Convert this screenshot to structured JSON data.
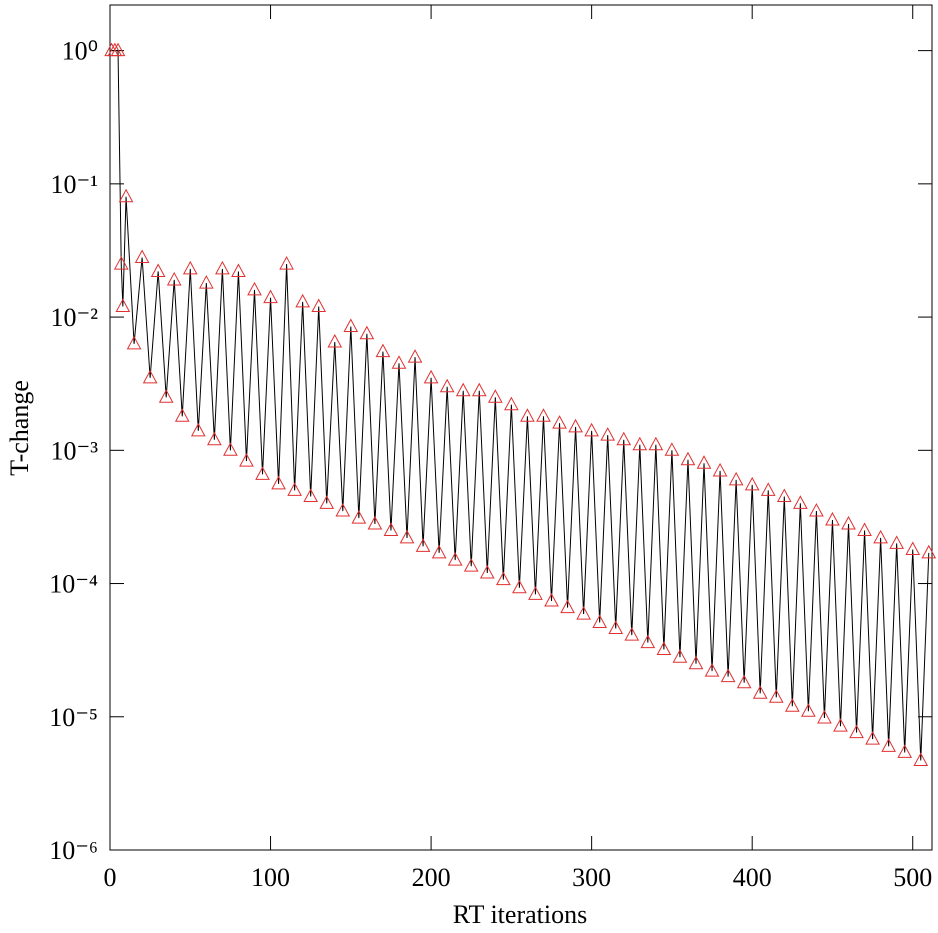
{
  "chart_data": {
    "type": "line",
    "xlabel": "RT iterations",
    "ylabel": "T-change",
    "log_y": true,
    "xlim": [
      0,
      512
    ],
    "ylim": [
      1e-06,
      2.2
    ],
    "xticks": [
      0,
      100,
      200,
      300,
      400,
      500
    ],
    "yticks": [
      {
        "value": 1e-06,
        "label": "10⁻⁶"
      },
      {
        "value": 1e-05,
        "label": "10⁻⁵"
      },
      {
        "value": 0.0001,
        "label": "10⁻⁴"
      },
      {
        "value": 0.001,
        "label": "10⁻³"
      },
      {
        "value": 0.01,
        "label": "10⁻²"
      },
      {
        "value": 0.1,
        "label": "10⁻¹"
      },
      {
        "value": 1,
        "label": "10⁰"
      }
    ],
    "x": [
      1,
      3,
      5,
      7,
      8,
      10,
      15,
      20,
      25,
      30,
      35,
      40,
      45,
      50,
      55,
      60,
      65,
      70,
      75,
      80,
      85,
      90,
      95,
      100,
      105,
      110,
      115,
      120,
      125,
      130,
      135,
      140,
      145,
      150,
      155,
      160,
      165,
      170,
      175,
      180,
      185,
      190,
      195,
      200,
      205,
      210,
      215,
      220,
      225,
      230,
      235,
      240,
      245,
      250,
      255,
      260,
      265,
      270,
      275,
      280,
      285,
      290,
      295,
      300,
      305,
      310,
      315,
      320,
      325,
      330,
      335,
      340,
      345,
      350,
      355,
      360,
      365,
      370,
      375,
      380,
      385,
      390,
      395,
      400,
      405,
      410,
      415,
      420,
      425,
      430,
      435,
      440,
      445,
      450,
      455,
      460,
      465,
      470,
      475,
      480,
      485,
      490,
      495,
      500,
      505,
      510
    ],
    "series": [
      {
        "name": "T-change",
        "color": "#e03030",
        "line_color": "#000000",
        "values": [
          1,
          1,
          1,
          0.025,
          0.012,
          0.08,
          0.0063,
          0.028,
          0.0035,
          0.022,
          0.0025,
          0.019,
          0.0018,
          0.023,
          0.0014,
          0.018,
          0.0012,
          0.023,
          0.001,
          0.022,
          0.00083,
          0.016,
          0.00066,
          0.014,
          0.00056,
          0.025,
          0.0005,
          0.013,
          0.00045,
          0.012,
          0.0004,
          0.0065,
          0.00035,
          0.0085,
          0.00031,
          0.0075,
          0.00028,
          0.0055,
          0.00025,
          0.0045,
          0.00022,
          0.005,
          0.00019,
          0.0035,
          0.00017,
          0.003,
          0.00015,
          0.0028,
          0.000135,
          0.0028,
          0.00012,
          0.0025,
          0.000107,
          0.0022,
          9.3e-05,
          0.0018,
          8.3e-05,
          0.0018,
          7.4e-05,
          0.0016,
          6.6e-05,
          0.0015,
          5.9e-05,
          0.0014,
          5.1e-05,
          0.0013,
          4.6e-05,
          0.0012,
          4.1e-05,
          0.0011,
          3.6e-05,
          0.0011,
          3.2e-05,
          0.001,
          2.8e-05,
          0.00085,
          2.5e-05,
          0.0008,
          2.2e-05,
          0.0007,
          2e-05,
          0.0006,
          1.8e-05,
          0.00055,
          1.5e-05,
          0.0005,
          1.4e-05,
          0.00045,
          1.2e-05,
          0.0004,
          1.1e-05,
          0.00035,
          9.8e-06,
          0.0003,
          8.5e-06,
          0.00028,
          7.6e-06,
          0.00025,
          6.8e-06,
          0.00022,
          6e-06,
          0.0002,
          5.4e-06,
          0.00018,
          4.7e-06,
          0.00017
        ]
      }
    ]
  }
}
